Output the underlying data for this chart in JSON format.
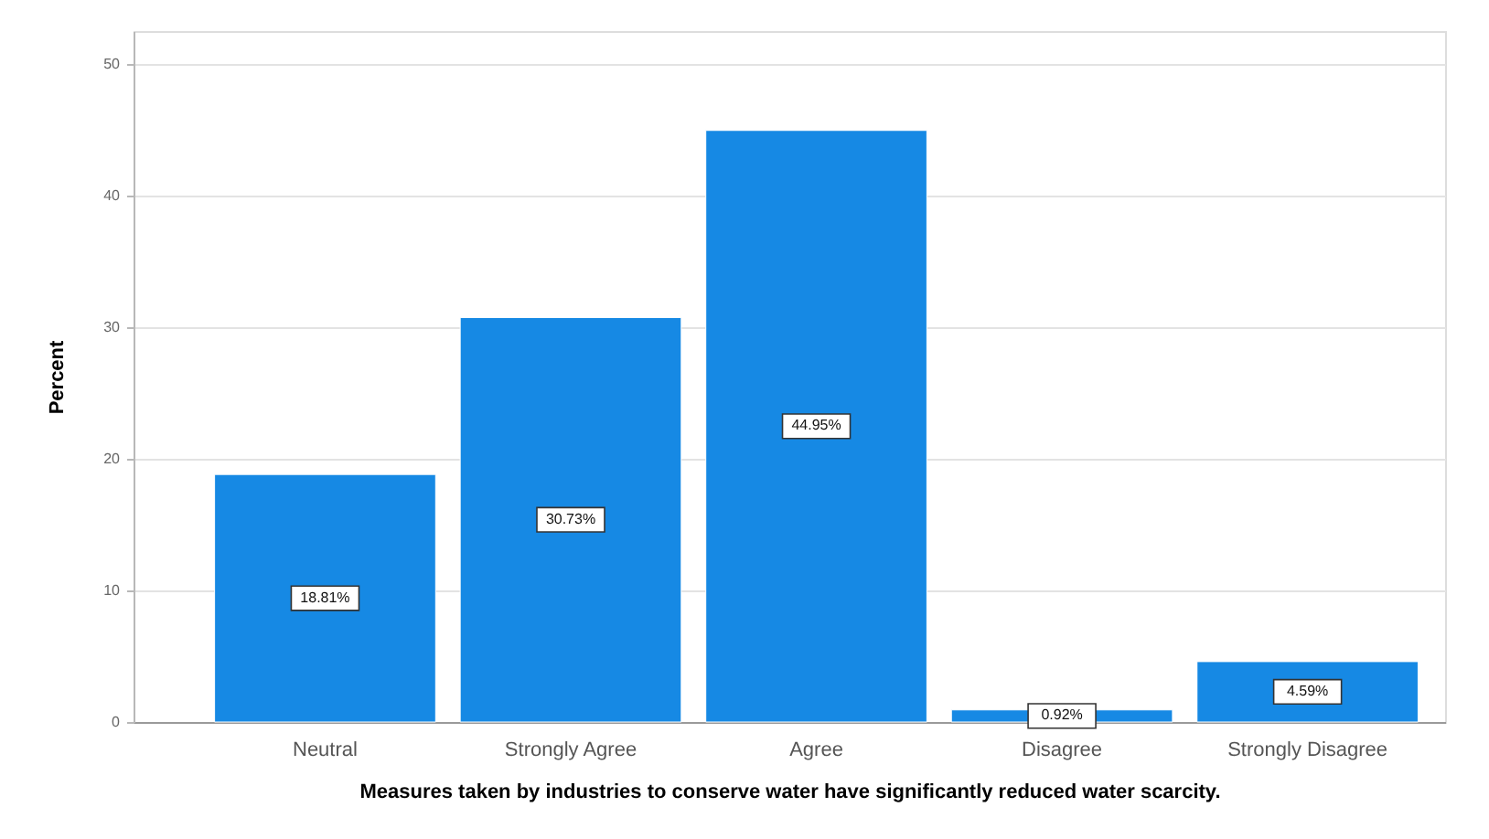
{
  "chart_data": {
    "type": "bar",
    "xlabel": "Measures taken by industries to conserve water have significantly reduced water scarcity.",
    "ylabel": "Percent",
    "categories": [
      "Neutral",
      "Strongly Agree",
      "Agree",
      "Disagree",
      "Strongly Disagree"
    ],
    "values": [
      18.81,
      30.73,
      44.95,
      0.92,
      4.59
    ],
    "color": "#1689e4",
    "value_labels": [
      "18.81%",
      "30.73%",
      "44.95%",
      "0.92%",
      "4.59%"
    ],
    "ylim": [
      0,
      52.5
    ],
    "yticks": [
      0,
      10,
      20,
      30,
      40,
      50
    ],
    "grid": "y"
  }
}
